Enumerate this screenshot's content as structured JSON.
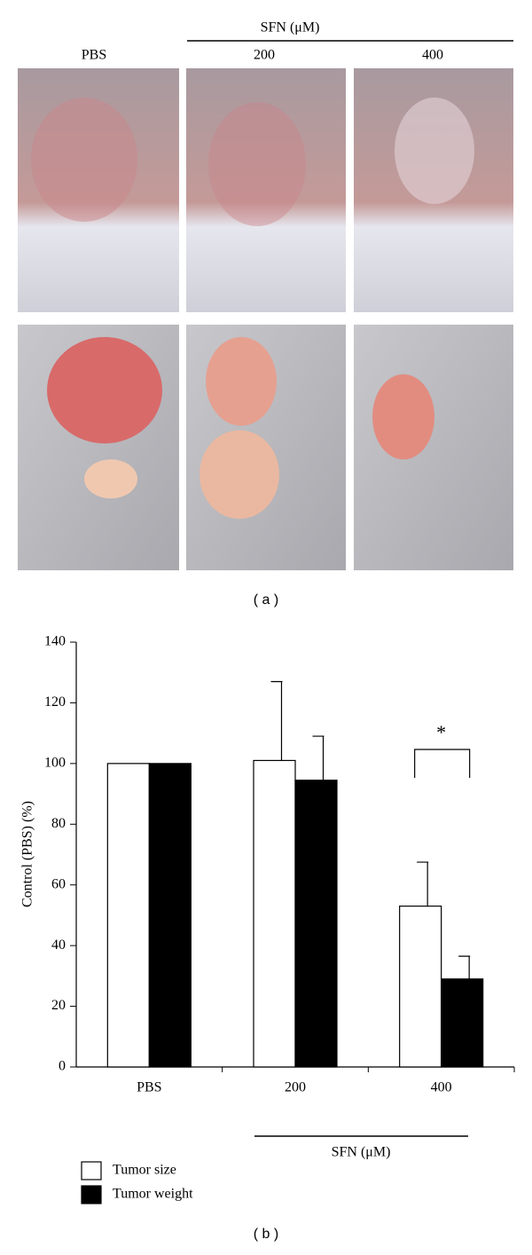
{
  "figure": {
    "header_group": "SFN (μM)",
    "columns": [
      "PBS",
      "200",
      "400"
    ],
    "panel_a_label": "( a )",
    "panel_b_label": "( b )"
  },
  "chart_data": {
    "type": "bar",
    "y_label": "Control (PBS) (%)",
    "x_group_label": "SFN (μM)",
    "categories": [
      "PBS",
      "200",
      "400"
    ],
    "series": [
      {
        "name": "Tumor size",
        "color": "#ffffff",
        "values": [
          100,
          101,
          53
        ],
        "errors": [
          null,
          26,
          14.5
        ]
      },
      {
        "name": "Tumor weight",
        "color": "#000000",
        "values": [
          100,
          94.5,
          29
        ],
        "errors": [
          null,
          14.5,
          7.5
        ]
      }
    ],
    "ylim": [
      0,
      140
    ],
    "yticks": [
      0,
      20,
      40,
      60,
      80,
      100,
      120,
      140
    ],
    "annotation": "*",
    "legend": "bottom-left"
  }
}
